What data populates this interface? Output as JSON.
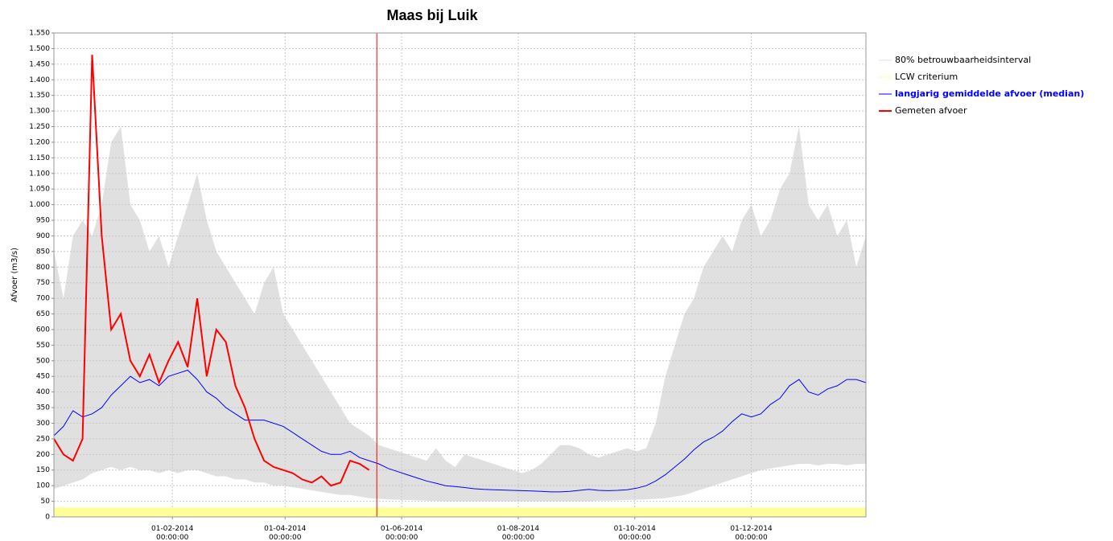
{
  "chart_data": {
    "type": "line",
    "title": "Maas bij Luik",
    "y_label": "Afvoer (m3/s)",
    "x": [
      "2013-12-01",
      "2013-12-06",
      "2013-12-11",
      "2013-12-16",
      "2013-12-21",
      "2013-12-26",
      "2013-12-31",
      "2014-01-05",
      "2014-01-10",
      "2014-01-15",
      "2014-01-20",
      "2014-01-25",
      "2014-01-30",
      "2014-02-04",
      "2014-02-09",
      "2014-02-14",
      "2014-02-19",
      "2014-02-24",
      "2014-03-01",
      "2014-03-06",
      "2014-03-11",
      "2014-03-16",
      "2014-03-21",
      "2014-03-26",
      "2014-03-31",
      "2014-04-05",
      "2014-04-10",
      "2014-04-15",
      "2014-04-20",
      "2014-04-25",
      "2014-04-30",
      "2014-05-05",
      "2014-05-10",
      "2014-05-15",
      "2014-05-20",
      "2014-05-25",
      "2014-05-30",
      "2014-06-04",
      "2014-06-09",
      "2014-06-14",
      "2014-06-19",
      "2014-06-24",
      "2014-06-29",
      "2014-07-04",
      "2014-07-09",
      "2014-07-14",
      "2014-07-19",
      "2014-07-24",
      "2014-07-29",
      "2014-08-03",
      "2014-08-08",
      "2014-08-13",
      "2014-08-18",
      "2014-08-23",
      "2014-08-28",
      "2014-09-02",
      "2014-09-07",
      "2014-09-12",
      "2014-09-17",
      "2014-09-22",
      "2014-09-27",
      "2014-10-02",
      "2014-10-07",
      "2014-10-12",
      "2014-10-17",
      "2014-10-22",
      "2014-10-27",
      "2014-11-01",
      "2014-11-06",
      "2014-11-11",
      "2014-11-16",
      "2014-11-21",
      "2014-11-26",
      "2014-12-01",
      "2014-12-06",
      "2014-12-11",
      "2014-12-16",
      "2014-12-21",
      "2014-12-26",
      "2014-12-31",
      "2015-01-05",
      "2015-01-10",
      "2015-01-15",
      "2015-01-20",
      "2015-01-25",
      "2015-01-30"
    ],
    "band": {
      "name": "80% betrouwbaarheidsinterval",
      "color": "#e0e0e0",
      "upper": [
        850,
        700,
        900,
        950,
        900,
        1000,
        1200,
        1250,
        1000,
        950,
        850,
        900,
        800,
        900,
        1000,
        1100,
        950,
        850,
        800,
        750,
        700,
        650,
        750,
        800,
        650,
        600,
        550,
        500,
        450,
        400,
        350,
        300,
        280,
        260,
        230,
        220,
        210,
        200,
        190,
        180,
        220,
        180,
        160,
        200,
        190,
        180,
        170,
        160,
        150,
        140,
        150,
        170,
        200,
        230,
        230,
        220,
        200,
        190,
        200,
        210,
        220,
        210,
        220,
        300,
        450,
        550,
        650,
        700,
        800,
        850,
        900,
        850,
        950,
        1000,
        900,
        950,
        1050,
        1100,
        1250,
        1000,
        950,
        1000,
        900,
        950,
        800,
        900
      ],
      "lower": [
        90,
        100,
        110,
        120,
        140,
        150,
        160,
        150,
        160,
        150,
        150,
        140,
        150,
        140,
        150,
        150,
        140,
        130,
        130,
        120,
        120,
        110,
        110,
        100,
        100,
        95,
        90,
        85,
        80,
        75,
        70,
        70,
        65,
        60,
        58,
        56,
        55,
        54,
        53,
        52,
        51,
        50,
        50,
        50,
        50,
        50,
        50,
        50,
        50,
        50,
        50,
        50,
        50,
        50,
        50,
        50,
        50,
        52,
        52,
        53,
        54,
        55,
        56,
        58,
        60,
        65,
        70,
        80,
        90,
        100,
        110,
        120,
        130,
        140,
        150,
        155,
        160,
        165,
        170,
        170,
        165,
        170,
        170,
        165,
        170,
        170
      ]
    },
    "lcw": {
      "name": "LCW criterium",
      "color": "#ffff99",
      "value": 30
    },
    "series": [
      {
        "name": "langjarig gemiddelde afvoer (median)",
        "color": "#0000ff",
        "legend_emphasis": true,
        "values": [
          260,
          290,
          340,
          320,
          330,
          350,
          390,
          420,
          450,
          430,
          440,
          420,
          450,
          460,
          470,
          440,
          400,
          380,
          350,
          330,
          310,
          310,
          310,
          300,
          290,
          270,
          250,
          230,
          210,
          200,
          200,
          210,
          190,
          180,
          170,
          155,
          145,
          135,
          125,
          115,
          108,
          100,
          97,
          94,
          90,
          88,
          87,
          86,
          85,
          84,
          83,
          82,
          80,
          80,
          82,
          85,
          88,
          85,
          84,
          85,
          87,
          92,
          100,
          115,
          135,
          160,
          185,
          215,
          240,
          255,
          275,
          305,
          330,
          320,
          330,
          360,
          380,
          420,
          440,
          400,
          390,
          410,
          420,
          440,
          440,
          430
        ]
      },
      {
        "name": "Gemeten afvoer",
        "color": "#ff0000",
        "width": 2,
        "values": [
          250,
          200,
          180,
          250,
          1480,
          900,
          600,
          650,
          500,
          450,
          520,
          430,
          500,
          560,
          480,
          700,
          450,
          600,
          560,
          420,
          350,
          250,
          180,
          160,
          150,
          140,
          120,
          110,
          130,
          100,
          110,
          180,
          170,
          150,
          null,
          null,
          null,
          null,
          null,
          null,
          null,
          null,
          null,
          null,
          null,
          null,
          null,
          null,
          null,
          null,
          null,
          null,
          null,
          null,
          null,
          null,
          null,
          null,
          null,
          null,
          null,
          null,
          null,
          null,
          null,
          null,
          null,
          null,
          null,
          null,
          null,
          null,
          null,
          null,
          null,
          null,
          null,
          null,
          null,
          null,
          null,
          null,
          null,
          null,
          null,
          null
        ]
      }
    ],
    "marker_date": "2014-05-19",
    "marker_color": "#ff0000",
    "xlim": [
      "2013-12-01",
      "2015-01-30"
    ],
    "xticks": [
      {
        "value": "2014-02-01",
        "label": "01-02-2014 00:00:00"
      },
      {
        "value": "2014-04-01",
        "label": "01-04-2014 00:00:00"
      },
      {
        "value": "2014-06-01",
        "label": "01-06-2014 00:00:00"
      },
      {
        "value": "2014-08-01",
        "label": "01-08-2014 00:00:00"
      },
      {
        "value": "2014-10-01",
        "label": "01-10-2014 00:00:00"
      },
      {
        "value": "2014-12-01",
        "label": "01-12-2014 00:00:00"
      }
    ],
    "ylim": [
      0,
      1550
    ],
    "yticks": [
      0,
      50,
      100,
      150,
      200,
      250,
      300,
      350,
      400,
      450,
      500,
      550,
      600,
      650,
      700,
      750,
      800,
      850,
      900,
      950,
      {
        "value": 1000,
        "label": "1.000"
      },
      {
        "value": 1050,
        "label": "1.050"
      },
      {
        "value": 1100,
        "label": "1.100"
      },
      {
        "value": 1150,
        "label": "1.150"
      },
      {
        "value": 1200,
        "label": "1.200"
      },
      {
        "value": 1250,
        "label": "1.250"
      },
      {
        "value": 1300,
        "label": "1.300"
      },
      {
        "value": 1350,
        "label": "1.350"
      },
      {
        "value": 1400,
        "label": "1.400"
      },
      {
        "value": 1450,
        "label": "1.450"
      },
      {
        "value": 1500,
        "label": "1.500"
      },
      {
        "value": 1550,
        "label": "1.550"
      }
    ],
    "grid": true
  }
}
